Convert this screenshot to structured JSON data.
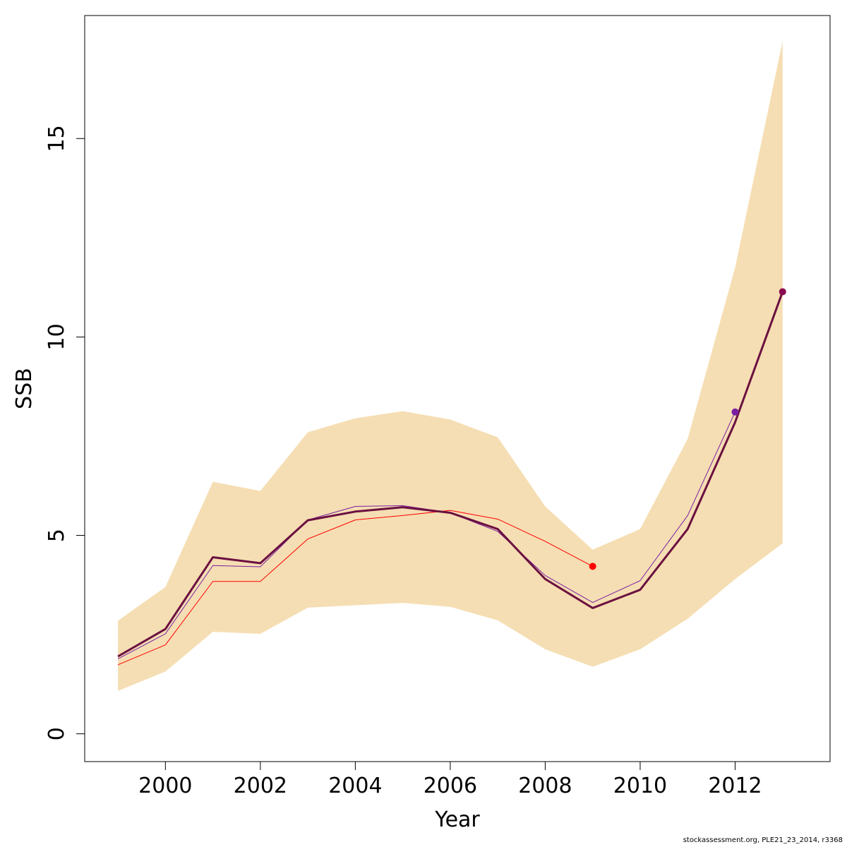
{
  "chart_data": {
    "type": "line",
    "xlabel": "Year",
    "ylabel": "SSB",
    "xlim": [
      1998.3,
      2014.0
    ],
    "ylim": [
      -0.7,
      18.1
    ],
    "x_ticks": [
      2000,
      2002,
      2004,
      2006,
      2008,
      2010,
      2012
    ],
    "y_ticks": [
      0,
      5,
      10,
      15
    ],
    "grid": false,
    "legend": "none",
    "band": {
      "color": "#f5deb3",
      "x": [
        1999,
        2000,
        2001,
        2002,
        2003,
        2004,
        2005,
        2006,
        2007,
        2008,
        2009,
        2010,
        2011,
        2012,
        2013
      ],
      "upper": [
        2.85,
        3.7,
        6.35,
        6.12,
        7.6,
        7.95,
        8.13,
        7.92,
        7.47,
        5.73,
        4.64,
        5.16,
        7.43,
        11.75,
        17.45
      ],
      "lower": [
        1.08,
        1.57,
        2.57,
        2.52,
        3.18,
        3.24,
        3.3,
        3.2,
        2.86,
        2.13,
        1.69,
        2.13,
        2.9,
        3.9,
        4.8
      ]
    },
    "series": [
      {
        "color": "#ff0000",
        "width": 1,
        "x": [
          1999,
          2000,
          2001,
          2002,
          2003,
          2004,
          2005,
          2006,
          2007,
          2008,
          2009
        ],
        "values": [
          1.74,
          2.24,
          3.84,
          3.84,
          4.91,
          5.39,
          5.5,
          5.63,
          5.41,
          4.85,
          4.22
        ],
        "endpoint": true
      },
      {
        "color": "#7b1fa2",
        "width": 1,
        "x": [
          1999,
          2000,
          2001,
          2002,
          2003,
          2004,
          2005,
          2006,
          2007,
          2008,
          2009,
          2010,
          2011,
          2012
        ],
        "values": [
          1.89,
          2.52,
          4.24,
          4.21,
          5.39,
          5.73,
          5.75,
          5.57,
          5.1,
          3.99,
          3.31,
          3.86,
          5.5,
          8.11
        ],
        "endpoint": true
      },
      {
        "color": "#6b1040",
        "width": 3,
        "x": [
          1999,
          2000,
          2001,
          2002,
          2003,
          2004,
          2005,
          2006,
          2007,
          2008,
          2009,
          2010,
          2011,
          2012,
          2013
        ],
        "values": [
          1.95,
          2.64,
          4.45,
          4.3,
          5.38,
          5.6,
          5.71,
          5.57,
          5.16,
          3.9,
          3.17,
          3.63,
          5.16,
          7.85,
          11.14
        ],
        "endpoint": false
      }
    ],
    "endpoint_color_last": "#8b0a50"
  },
  "footer": "stockassessment.org, PLE21_23_2014, r3368"
}
